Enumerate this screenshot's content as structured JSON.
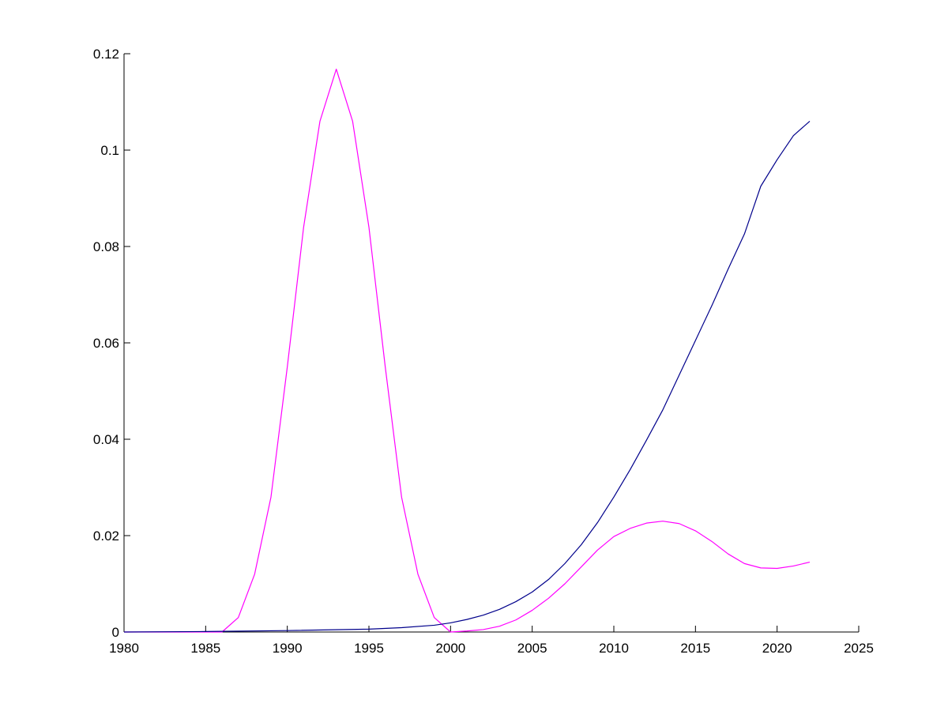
{
  "chart_data": {
    "type": "line",
    "title": "",
    "xlabel": "",
    "ylabel": "",
    "xlim": [
      1980,
      2025
    ],
    "ylim": [
      0,
      0.12
    ],
    "x_ticks": [
      1980,
      1985,
      1990,
      1995,
      2000,
      2005,
      2010,
      2015,
      2020,
      2025
    ],
    "x_tick_labels": [
      "1980",
      "1985",
      "1990",
      "1995",
      "2000",
      "2005",
      "2010",
      "2015",
      "2020",
      "2025"
    ],
    "y_ticks": [
      0,
      0.02,
      0.04,
      0.06,
      0.08,
      0.1,
      0.12
    ],
    "y_tick_labels": [
      "0",
      "0.02",
      "0.04",
      "0.06",
      "0.08",
      "0.1",
      "0.12"
    ],
    "grid": false,
    "legend": "none",
    "series": [
      {
        "color": "#ff00ff",
        "x": [
          1980,
          1986,
          1987,
          1988,
          1989,
          1990,
          1991,
          1992,
          1993,
          1994,
          1995,
          1996,
          1997,
          1998,
          1999,
          2000
        ],
        "values": [
          0,
          0,
          0.003,
          0.012,
          0.028,
          0.055,
          0.084,
          0.106,
          0.1168,
          0.106,
          0.084,
          0.055,
          0.028,
          0.012,
          0.003,
          0
        ]
      },
      {
        "color": "#ff00ff",
        "x": [
          2000,
          2001,
          2002,
          2003,
          2004,
          2005,
          2006,
          2007,
          2008,
          2009,
          2010,
          2011,
          2012,
          2013,
          2014,
          2015,
          2016,
          2017,
          2018,
          2019,
          2020,
          2021,
          2022
        ],
        "values": [
          0,
          0.0002,
          0.0005,
          0.0012,
          0.0025,
          0.0045,
          0.007,
          0.01,
          0.0135,
          0.017,
          0.0198,
          0.0215,
          0.0226,
          0.023,
          0.0225,
          0.021,
          0.0188,
          0.0162,
          0.0142,
          0.0133,
          0.0132,
          0.0137,
          0.0145
        ]
      },
      {
        "color": "#00008b",
        "x": [
          1980,
          1985,
          1990,
          1995,
          1997,
          1999,
          2000,
          2001,
          2002,
          2003,
          2004,
          2005,
          2006,
          2007,
          2008,
          2009,
          2010,
          2011,
          2012,
          2013,
          2014,
          2015,
          2016,
          2017,
          2018,
          2019,
          2020,
          2021,
          2022
        ],
        "values": [
          0,
          0.0001,
          0.0003,
          0.0006,
          0.0009,
          0.0014,
          0.0019,
          0.0026,
          0.0035,
          0.0047,
          0.0063,
          0.0083,
          0.0109,
          0.0142,
          0.0181,
          0.0227,
          0.028,
          0.0337,
          0.0398,
          0.0461,
          0.0533,
          0.0605,
          0.0677,
          0.0753,
          0.0826,
          0.0925,
          0.098,
          0.103,
          0.106
        ]
      }
    ]
  }
}
